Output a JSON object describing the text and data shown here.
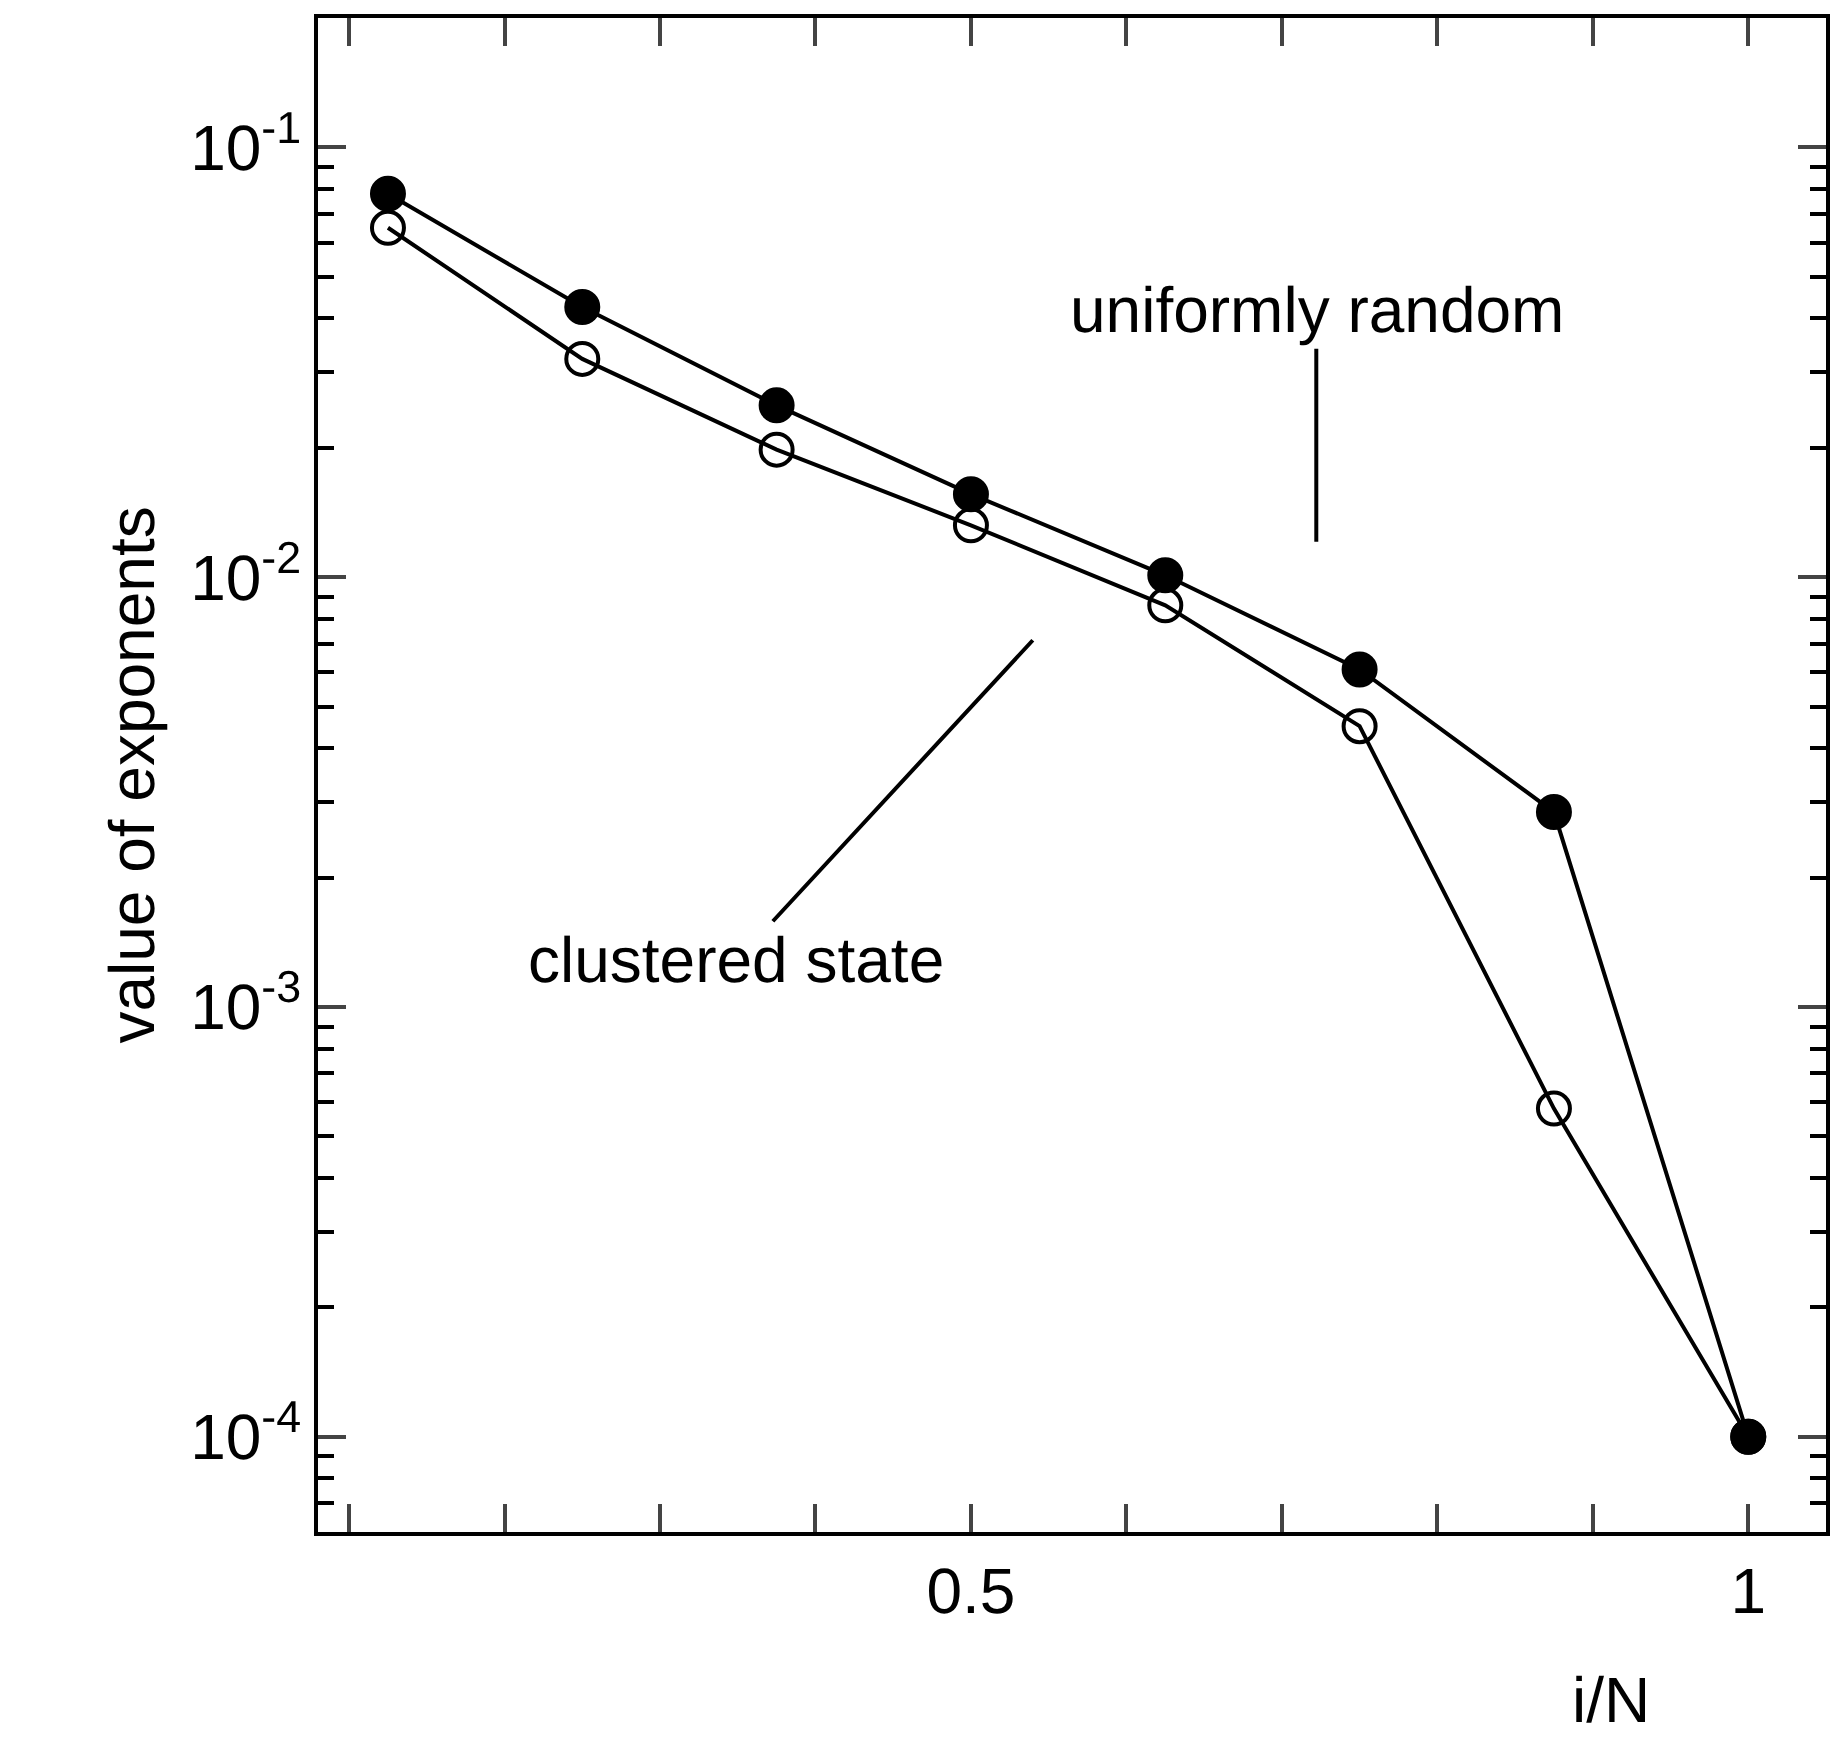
{
  "chart_data": {
    "type": "line",
    "xlabel": "i/N",
    "ylabel": "value of exponents",
    "log": "y",
    "marker": "circle",
    "line_style": "solid",
    "x": [
      0.125,
      0.25,
      0.375,
      0.5,
      0.625,
      0.75,
      0.875,
      1.0
    ],
    "series": [
      {
        "color": "#000000",
        "values": [
          0.078,
          0.0425,
          0.0251,
          0.0156,
          0.0101,
          0.0061,
          0.00284,
          0.0001
        ]
      },
      {
        "color": "#000000",
        "values": [
          0.065,
          0.0322,
          0.0198,
          0.0132,
          0.0086,
          0.0045,
          0.00058,
          0.0001
        ]
      }
    ],
    "annotations": [
      "uniformly random",
      "clustered state"
    ],
    "xlim": [
      0.08,
      1.05
    ],
    "xticks": [
      {
        "value": 0.1,
        "label": null
      },
      {
        "value": 0.2,
        "label": null
      },
      {
        "value": 0.3,
        "label": null
      },
      {
        "value": 0.4,
        "label": null
      },
      0.5,
      {
        "value": 0.6,
        "label": null
      },
      {
        "value": 0.7,
        "label": null
      },
      {
        "value": 0.8,
        "label": null
      },
      {
        "value": 0.9,
        "label": null
      },
      1
    ],
    "ylim": [
      6e-05,
      0.2
    ],
    "yticks": [
      {
        "value": 0.0001,
        "label": "10$^{-4}$"
      },
      {
        "value": 0.001,
        "label": "10$^{-3}$"
      },
      {
        "value": 0.01,
        "label": "10$^{-2}$"
      },
      {
        "value": 0.1,
        "label": "10$^{-1}$"
      }
    ]
  }
}
